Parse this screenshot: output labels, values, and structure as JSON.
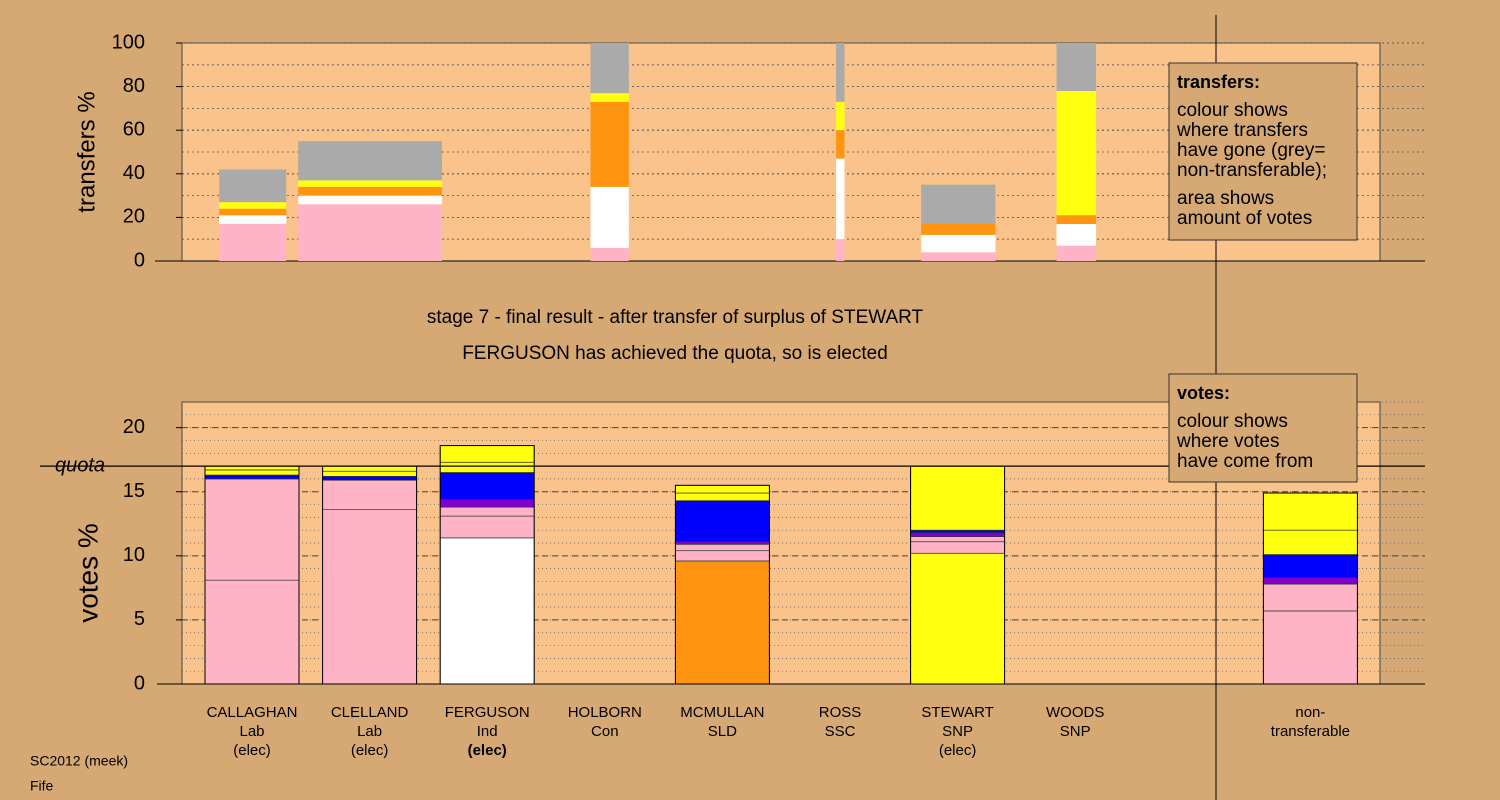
{
  "chart_data": [
    {
      "type": "mosaic",
      "ylabel": "transfers %",
      "ylim": [
        0,
        100
      ],
      "yticks": [
        0,
        20,
        40,
        60,
        80,
        100
      ],
      "minor_step": 10,
      "xlim": [
        0,
        100
      ],
      "x": [
        3.1,
        9.7,
        34.1,
        54.6,
        61.7,
        73.0
      ],
      "widths": [
        5.6,
        12.0,
        3.2,
        0.7,
        6.2,
        3.3
      ],
      "series": [
        {
          "color": "#ffb3c6",
          "values": [
            17,
            26,
            6,
            10,
            4,
            7
          ]
        },
        {
          "color": "#ffffff",
          "values": [
            4,
            4,
            28,
            37,
            8,
            10
          ]
        },
        {
          "color": "#ff9410",
          "values": [
            3,
            4,
            39,
            13,
            5,
            4
          ]
        },
        {
          "color": "#ffff10",
          "values": [
            3,
            3,
            4,
            13,
            0,
            57
          ]
        },
        {
          "color": "#aaaaaa",
          "values": [
            15,
            18,
            23,
            27,
            18,
            22
          ]
        }
      ],
      "note_title": "transfers:",
      "note_paragraphs": [
        [
          "colour shows",
          "where transfers",
          "have gone (grey=",
          "non-transferable);"
        ],
        [
          "area shows",
          "amount of votes"
        ]
      ]
    },
    {
      "type": "stacked-bar",
      "subtitle": [
        "stage 7 - final result - after transfer of surplus of STEWART",
        "FERGUSON has achieved the quota, so is elected"
      ],
      "ylabel": "votes %",
      "ylim": [
        0,
        22
      ],
      "yticks": [
        0,
        5,
        10,
        15,
        20
      ],
      "minor_step": 1,
      "quota": 17,
      "quota_label": "quota",
      "highlight_category": 2,
      "categories": [
        [
          "CALLAGHAN",
          "Lab",
          "(elec)"
        ],
        [
          "CLELLAND",
          "Lab",
          "(elec)"
        ],
        [
          "FERGUSON",
          "Ind",
          "(elec)"
        ],
        [
          "HOLBORN",
          "Con"
        ],
        [
          "MCMULLAN",
          "SLD"
        ],
        [
          "ROSS",
          "SSC"
        ],
        [
          "STEWART",
          "SNP",
          "(elec)"
        ],
        [
          "WOODS",
          "SNP"
        ],
        null,
        [
          "non-",
          "transferable"
        ]
      ],
      "stacks": [
        [
          {
            "color": "#ffb3c6",
            "value": 8.1
          },
          {
            "color": "#ffb3c6",
            "value": 7.9
          },
          {
            "color": "#0000ff",
            "value": 0.3
          },
          {
            "color": "#ffff10",
            "value": 0.4
          },
          {
            "color": "#ffff10",
            "value": 0.3
          }
        ],
        [
          {
            "color": "#ffb3c6",
            "value": 13.6
          },
          {
            "color": "#ffb3c6",
            "value": 2.3
          },
          {
            "color": "#0000ff",
            "value": 0.3
          },
          {
            "color": "#ffff10",
            "value": 0.4
          },
          {
            "color": "#ffff10",
            "value": 0.4
          }
        ],
        [
          {
            "color": "#ffffff",
            "value": 11.4
          },
          {
            "color": "#ffb3c6",
            "value": 1.7
          },
          {
            "color": "#ffb3c6",
            "value": 0.7
          },
          {
            "color": "#8000d0",
            "value": 0.6
          },
          {
            "color": "#0000ff",
            "value": 2.1
          },
          {
            "color": "#ffff10",
            "value": 0.8
          },
          {
            "color": "#ffff10",
            "value": 1.3
          }
        ],
        [],
        [
          {
            "color": "#ff9410",
            "value": 9.6
          },
          {
            "color": "#ffb3c6",
            "value": 0.8
          },
          {
            "color": "#ffb3c6",
            "value": 0.5
          },
          {
            "color": "#8000d0",
            "value": 0.2
          },
          {
            "color": "#0000ff",
            "value": 3.2
          },
          {
            "color": "#ffff10",
            "value": 0.6
          },
          {
            "color": "#ffff10",
            "value": 0.6
          }
        ],
        [],
        [
          {
            "color": "#ffff10",
            "value": 10.2
          },
          {
            "color": "#ffb3c6",
            "value": 0.9
          },
          {
            "color": "#ffb3c6",
            "value": 0.4
          },
          {
            "color": "#8000d0",
            "value": 0.3
          },
          {
            "color": "#0000ff",
            "value": 0.2
          },
          {
            "color": "#ffff10",
            "value": 5.0
          }
        ],
        [],
        [],
        [
          {
            "color": "#ffb3c6",
            "value": 5.7
          },
          {
            "color": "#ffb3c6",
            "value": 2.1
          },
          {
            "color": "#8000d0",
            "value": 0.5
          },
          {
            "color": "#0000ff",
            "value": 1.8
          },
          {
            "color": "#ffff10",
            "value": 1.9
          },
          {
            "color": "#ffff10",
            "value": 2.9
          }
        ]
      ],
      "note_title": "votes:",
      "note_paragraphs": [
        [
          "colour shows",
          "where votes",
          "have come from"
        ]
      ]
    }
  ],
  "footer": [
    "SC2012 (meek)",
    "Fife"
  ]
}
